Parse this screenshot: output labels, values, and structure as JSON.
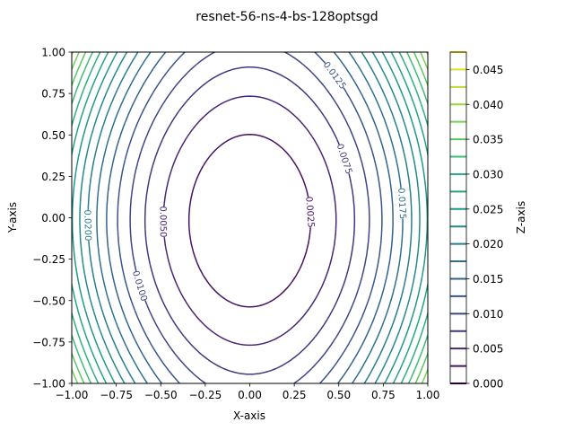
{
  "chart_data": {
    "type": "contour",
    "title": "resnet-56-ns-4-bs-128optsgd",
    "xlabel": "X-axis",
    "ylabel": "Y-axis",
    "zlabel": "Z-axis",
    "xlim": [
      -1.0,
      1.0
    ],
    "ylim": [
      -1.0,
      1.0
    ],
    "x_ticks": [
      "−1.00",
      "−0.75",
      "−0.50",
      "−0.25",
      "0.00",
      "0.25",
      "0.50",
      "0.75",
      "1.00"
    ],
    "y_ticks": [
      "−1.00",
      "−0.75",
      "−0.50",
      "−0.25",
      "0.00",
      "0.25",
      "0.50",
      "0.75",
      "1.00"
    ],
    "colorbar": {
      "ticks": [
        "0.000",
        "0.005",
        "0.010",
        "0.015",
        "0.020",
        "0.025",
        "0.030",
        "0.035",
        "0.040",
        "0.045"
      ],
      "range": [
        0.0,
        0.0475
      ],
      "step": 0.0025,
      "colormap": "viridis"
    },
    "levels": [
      0.0025,
      0.005,
      0.0075,
      0.01,
      0.0125,
      0.015,
      0.0175,
      0.02,
      0.0225,
      0.025,
      0.0275,
      0.03,
      0.0325,
      0.035,
      0.0375,
      0.04,
      0.0425,
      0.045
    ],
    "contour_labels": [
      "0.0025",
      "0.0050",
      "0.0075",
      "0.0100",
      "0.0125",
      "0.0150",
      "0.0175",
      "0.0200",
      "0.0225",
      "0.0250",
      "0.0275",
      "0.0300"
    ],
    "grid": false,
    "colorbar_position": "right"
  }
}
